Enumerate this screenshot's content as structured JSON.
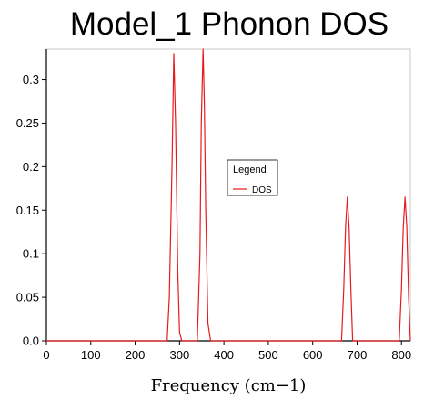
{
  "chart_data": {
    "type": "line",
    "title": "Model_1 Phonon DOS",
    "xlabel": "Frequency (cm−1)",
    "ylabel": "",
    "xlim": [
      0,
      820
    ],
    "ylim": [
      0,
      0.335
    ],
    "x_ticks": [
      0,
      100,
      200,
      300,
      400,
      500,
      600,
      700,
      800
    ],
    "x_tick_labels": [
      "0",
      "100",
      "200",
      "300",
      "400",
      "500",
      "600",
      "700",
      "800"
    ],
    "y_ticks": [
      0.0,
      0.05,
      0.1,
      0.15,
      0.2,
      0.25,
      0.3
    ],
    "y_tick_labels": [
      "0.0",
      "0.05",
      "0.1",
      "0.15",
      "0.2",
      "0.25",
      "0.3"
    ],
    "grid": false,
    "legend": {
      "title": "Legend",
      "placement": "center-right",
      "entries": [
        "DOS"
      ]
    },
    "series": [
      {
        "name": "DOS",
        "color": "#e8191c",
        "x": [
          0,
          260,
          272,
          277,
          283,
          287,
          291,
          296,
          300,
          305,
          335,
          340,
          346,
          349,
          353,
          356,
          359,
          364,
          370,
          660,
          665,
          670,
          674,
          678,
          682,
          686,
          690,
          790,
          795,
          800,
          804,
          808,
          812,
          816,
          820
        ],
        "y": [
          0,
          0,
          0,
          0.05,
          0.2,
          0.33,
          0.25,
          0.08,
          0.01,
          0,
          0,
          0,
          0.1,
          0.25,
          0.335,
          0.27,
          0.15,
          0.02,
          0,
          0,
          0,
          0.06,
          0.13,
          0.165,
          0.13,
          0.06,
          0,
          0,
          0,
          0.06,
          0.13,
          0.165,
          0.13,
          0.05,
          0
        ]
      }
    ]
  }
}
